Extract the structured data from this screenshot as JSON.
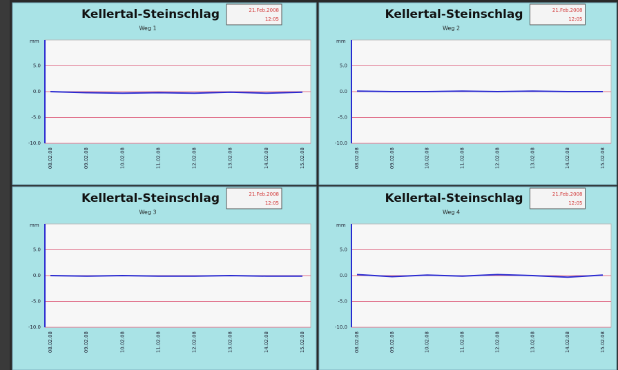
{
  "chart_data": [
    {
      "type": "line",
      "title": "Kellertal-Steinschlag",
      "subtitle": "Weg 1",
      "date": "21.Feb.2008",
      "time": "12:05",
      "y_label": "mm",
      "categories": [
        "08.02.08",
        "09.02.08",
        "10.02.08",
        "11.02.08",
        "12.02.08",
        "13.02.08",
        "14.02.08",
        "15.02.08"
      ],
      "series": [
        {
          "name": "Weg 1",
          "color": "#2a2ad0",
          "values": [
            0.0,
            -0.2,
            -0.3,
            -0.2,
            -0.3,
            -0.1,
            -0.3,
            -0.1
          ]
        }
      ],
      "ylim": [
        -10,
        10
      ],
      "yticks": [
        {
          "value": -10,
          "label": "-10.0"
        },
        {
          "value": -5,
          "label": "-5.0"
        },
        {
          "value": 0,
          "label": "0.0"
        },
        {
          "value": 5,
          "label": "5.0"
        }
      ],
      "grid": true,
      "grid_color": "#e0708a"
    },
    {
      "type": "line",
      "title": "Kellertal-Steinschlag",
      "subtitle": "Weg 2",
      "date": "21.Feb.2008",
      "time": "12:05",
      "y_label": "mm",
      "categories": [
        "08.02.08",
        "09.02.08",
        "10.02.08",
        "11.02.08",
        "12.02.08",
        "13.02.08",
        "14.02.08",
        "15.02.08"
      ],
      "series": [
        {
          "name": "Weg 2",
          "color": "#2a2ad0",
          "values": [
            0.1,
            0.0,
            0.0,
            0.1,
            0.0,
            0.1,
            0.0,
            0.0
          ]
        }
      ],
      "ylim": [
        -10,
        10
      ],
      "yticks": [
        {
          "value": -10,
          "label": "-10.0"
        },
        {
          "value": -5,
          "label": "-5.0"
        },
        {
          "value": 0,
          "label": "0.0"
        },
        {
          "value": 5,
          "label": "5.0"
        }
      ],
      "grid": true,
      "grid_color": "#e0708a"
    },
    {
      "type": "line",
      "title": "Kellertal-Steinschlag",
      "subtitle": "Weg 3",
      "date": "21.Feb.2008",
      "time": "12:05",
      "y_label": "mm",
      "categories": [
        "08.02.08",
        "09.02.08",
        "10.02.08",
        "11.02.08",
        "12.02.08",
        "13.02.08",
        "14.02.08",
        "15.02.08"
      ],
      "series": [
        {
          "name": "Weg 3",
          "color": "#2a2ad0",
          "values": [
            0.0,
            -0.1,
            0.0,
            -0.1,
            -0.1,
            0.0,
            -0.1,
            -0.1
          ]
        }
      ],
      "ylim": [
        -10,
        10
      ],
      "yticks": [
        {
          "value": -10,
          "label": "-10.0"
        },
        {
          "value": -5,
          "label": "-5.0"
        },
        {
          "value": 0,
          "label": "0.0"
        },
        {
          "value": 5,
          "label": "5.0"
        }
      ],
      "grid": true,
      "grid_color": "#e0708a"
    },
    {
      "type": "line",
      "title": "Kellertal-Steinschlag",
      "subtitle": "Weg 4",
      "date": "21.Feb.2008",
      "time": "12:05",
      "y_label": "mm",
      "categories": [
        "08.02.08",
        "09.02.08",
        "10.02.08",
        "11.02.08",
        "12.02.08",
        "13.02.08",
        "14.02.08",
        "15.02.08"
      ],
      "series": [
        {
          "name": "Weg 4",
          "color": "#2a2ad0",
          "values": [
            0.2,
            -0.2,
            0.1,
            -0.1,
            0.2,
            0.0,
            -0.3,
            0.1
          ]
        }
      ],
      "ylim": [
        -10,
        10
      ],
      "yticks": [
        {
          "value": -10,
          "label": "-10.0"
        },
        {
          "value": -5,
          "label": "-5.0"
        },
        {
          "value": 0,
          "label": "0.0"
        },
        {
          "value": 5,
          "label": "5.0"
        }
      ],
      "grid": true,
      "grid_color": "#e0708a"
    }
  ]
}
